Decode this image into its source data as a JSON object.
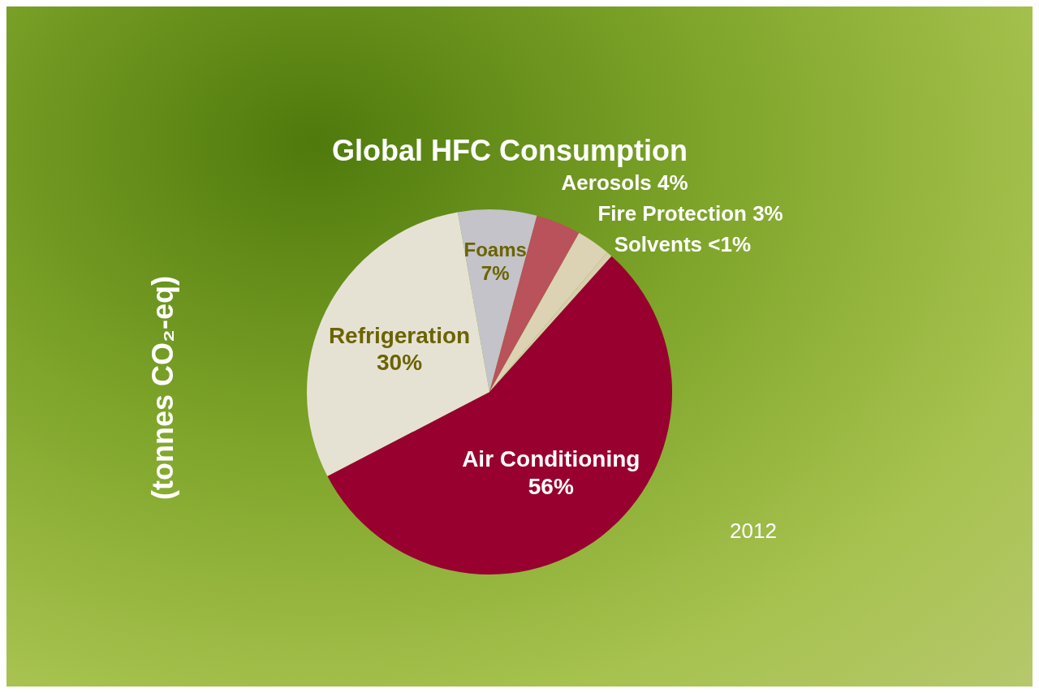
{
  "chart_data": {
    "type": "pie",
    "title": "Global HFC Consumption",
    "ylabel": "(tonnes CO₂-eq)",
    "categories": [
      "Foams",
      "Aerosols",
      "Fire Protection",
      "Solvents",
      "Air Conditioning",
      "Refrigeration"
    ],
    "values": [
      7,
      4,
      3,
      0.5,
      56,
      30
    ],
    "value_labels": [
      "7%",
      "4%",
      "3%",
      "<1%",
      "56%",
      "30%"
    ],
    "colors": [
      "#c3c3c9",
      "#b9525a",
      "#dcd3b4",
      "#d8cfae",
      "#98002f",
      "#e6e2d3"
    ],
    "annotations": [
      "2012"
    ],
    "legend": false
  }
}
